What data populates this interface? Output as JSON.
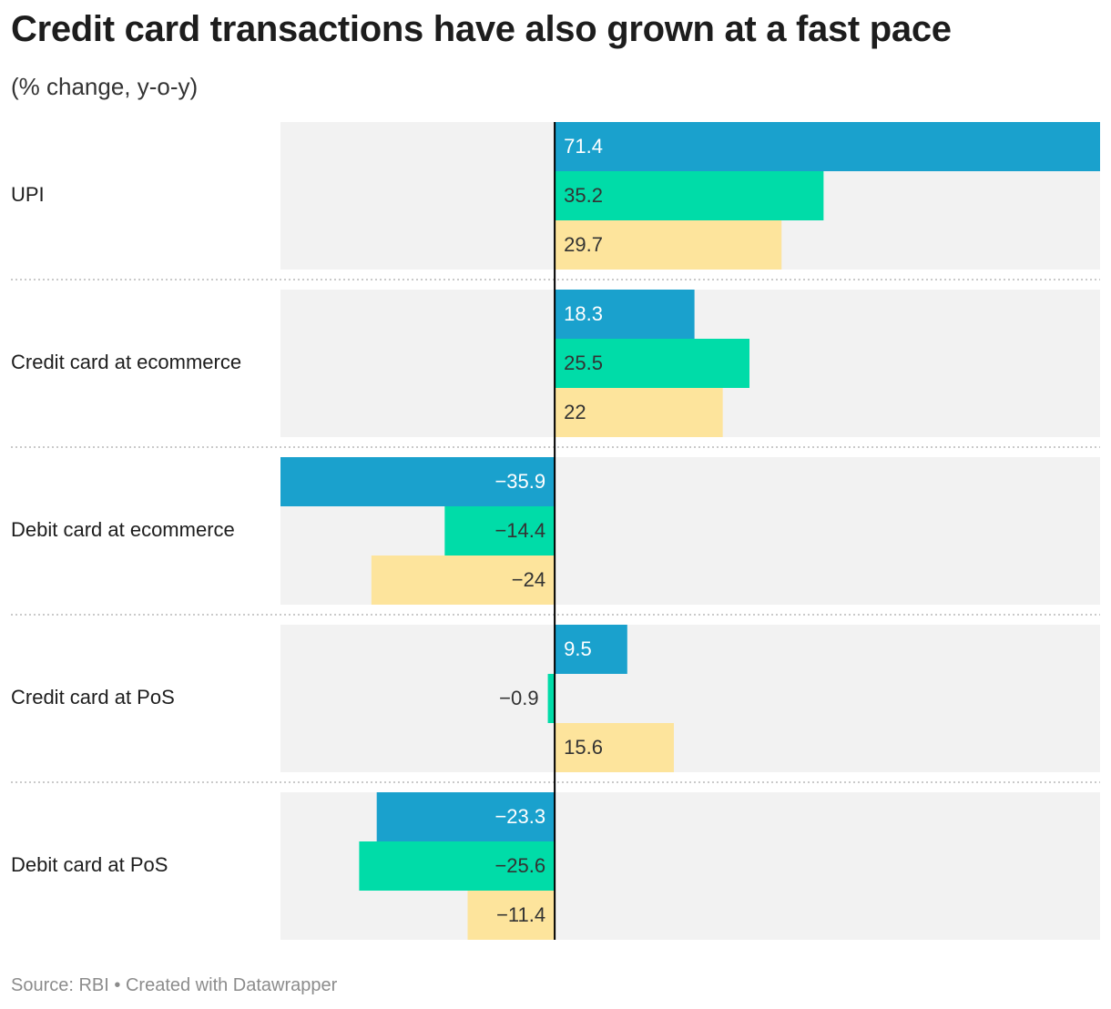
{
  "title": "Credit card transactions have also grown at a fast pace",
  "subtitle": "(% change, y-o-y)",
  "source": "Source: RBI",
  "credit": "Created with Datawrapper",
  "separator": "•",
  "colors": {
    "series_1": "#1aa1cd",
    "series_2": "#00dca8",
    "series_3": "#fde49c",
    "panel_background": "#f2f2f2",
    "zero_line": "#000000",
    "label_light": "#ffffff",
    "label_dark": "#333333"
  },
  "chart_data": {
    "type": "bar",
    "orientation": "horizontal",
    "grouped": true,
    "categories": [
      "UPI",
      "Credit card at ecommerce",
      "Debit card at ecommerce",
      "Credit card at PoS",
      "Debit card at PoS"
    ],
    "series": [
      {
        "values": [
          71.4,
          18.3,
          -35.9,
          9.5,
          -23.3
        ]
      },
      {
        "values": [
          35.2,
          25.5,
          -14.4,
          -0.9,
          -25.6
        ]
      },
      {
        "values": [
          29.7,
          22,
          -24,
          15.6,
          -11.4
        ]
      }
    ],
    "value_labels": [
      [
        "71.4",
        "35.2",
        "29.7"
      ],
      [
        "18.3",
        "25.5",
        "22"
      ],
      [
        "−35.9",
        "−14.4",
        "−24"
      ],
      [
        "9.5",
        "−0.9",
        "15.6"
      ],
      [
        "−23.3",
        "−25.6",
        "−11.4"
      ]
    ],
    "xlim": [
      -35.9,
      71.4
    ],
    "legend": "none",
    "grid": false
  }
}
